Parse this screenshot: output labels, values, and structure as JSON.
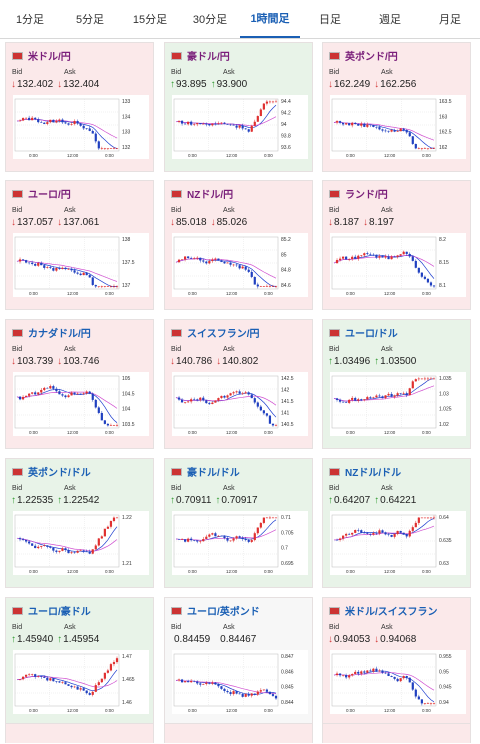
{
  "tabs": [
    "1分足",
    "5分足",
    "15分足",
    "30分足",
    "1時間足",
    "日足",
    "週足",
    "月足"
  ],
  "active_tab": 4,
  "labels": {
    "bid": "Bid",
    "ask": "Ask"
  },
  "cards": [
    {
      "pair": "米ドル/円",
      "bid": "132.402",
      "ask": "132.404",
      "trend": "down",
      "ticks": [
        "133",
        "134",
        "133",
        "132"
      ],
      "xticks": [
        "0:00",
        "12:00",
        "0:00"
      ],
      "flag": "us-jp"
    },
    {
      "pair": "豪ドル/円",
      "bid": "93.895",
      "ask": "93.900",
      "trend": "up",
      "ticks": [
        "94.4",
        "94.2",
        "94",
        "93.8",
        "93.6"
      ],
      "xticks": [
        "0:00",
        "12:00",
        "0:00"
      ],
      "flag": "au-jp"
    },
    {
      "pair": "英ポンド/円",
      "bid": "162.249",
      "ask": "162.256",
      "trend": "down",
      "ticks": [
        "163.5",
        "163",
        "162.5",
        "162"
      ],
      "xticks": [
        "0:00",
        "12:00",
        "0:00"
      ],
      "flag": "gb-jp"
    },
    {
      "pair": "ユーロ/円",
      "bid": "137.057",
      "ask": "137.061",
      "trend": "down",
      "ticks": [
        "138",
        "137.5",
        "137"
      ],
      "xticks": [
        "0:00",
        "12:00",
        "0:00"
      ],
      "flag": "eu-jp"
    },
    {
      "pair": "NZドル/円",
      "bid": "85.018",
      "ask": "85.026",
      "trend": "down",
      "ticks": [
        "85.2",
        "85",
        "84.8",
        "84.6"
      ],
      "xticks": [
        "0:00",
        "12:00",
        "0:00"
      ],
      "flag": "nz-jp"
    },
    {
      "pair": "ランド/円",
      "bid": "8.187",
      "ask": "8.197",
      "trend": "down",
      "ticks": [
        "8.2",
        "8.15",
        "8.1"
      ],
      "xticks": [
        "0:00",
        "12:00",
        "0:00"
      ],
      "flag": "za-jp"
    },
    {
      "pair": "カナダドル/円",
      "bid": "103.739",
      "ask": "103.746",
      "trend": "down",
      "ticks": [
        "105",
        "104.5",
        "104",
        "103.5"
      ],
      "xticks": [
        "0:00",
        "12:00",
        "0:00"
      ],
      "flag": "ca-jp"
    },
    {
      "pair": "スイスフラン/円",
      "bid": "140.786",
      "ask": "140.802",
      "trend": "down",
      "ticks": [
        "142.5",
        "142",
        "141.5",
        "141",
        "140.5"
      ],
      "xticks": [
        "0:00",
        "12:00",
        "0:00"
      ],
      "flag": "ch-jp"
    },
    {
      "pair": "ユーロ/ドル",
      "bid": "1.03496",
      "ask": "1.03500",
      "trend": "up",
      "ticks": [
        "1.035",
        "1.03",
        "1.025",
        "1.02"
      ],
      "xticks": [
        "0:00",
        "12:00",
        "0:00"
      ],
      "flag": "eu-us"
    },
    {
      "pair": "英ポンド/ドル",
      "bid": "1.22535",
      "ask": "1.22542",
      "trend": "up",
      "ticks": [
        "1.22",
        "1.21"
      ],
      "xticks": [
        "0:00",
        "12:00",
        "0:00"
      ],
      "flag": "gb-us"
    },
    {
      "pair": "豪ドル/ドル",
      "bid": "0.70911",
      "ask": "0.70917",
      "trend": "up",
      "ticks": [
        "0.71",
        "0.705",
        "0.7",
        "0.695"
      ],
      "xticks": [
        "0:00",
        "12:00",
        "0:00"
      ],
      "flag": "au-us"
    },
    {
      "pair": "NZドル/ドル",
      "bid": "0.64207",
      "ask": "0.64221",
      "trend": "up",
      "ticks": [
        "0.64",
        "0.635",
        "0.63"
      ],
      "xticks": [
        "0:00",
        "12:00",
        "0:00"
      ],
      "flag": "nz-us"
    },
    {
      "pair": "ユーロ/豪ドル",
      "bid": "1.45940",
      "ask": "1.45954",
      "trend": "up",
      "ticks": [
        "1.47",
        "1.465",
        "1.46"
      ],
      "xticks": [
        "0:00",
        "12:00",
        "0:00"
      ],
      "flag": "eu-au"
    },
    {
      "pair": "ユーロ/英ポンド",
      "bid": "0.84459",
      "ask": "0.84467",
      "trend": "none",
      "ticks": [
        "0.847",
        "0.846",
        "0.845",
        "0.844"
      ],
      "xticks": [
        "0:00",
        "12:00",
        "0:00"
      ],
      "flag": "eu-gb"
    },
    {
      "pair": "米ドル/スイスフラン",
      "bid": "0.94053",
      "ask": "0.94068",
      "trend": "down",
      "ticks": [
        "0.955",
        "0.95",
        "0.945",
        "0.94"
      ],
      "xticks": [
        "0:00",
        "12:00",
        "0:00"
      ],
      "flag": "us-ch"
    }
  ]
}
